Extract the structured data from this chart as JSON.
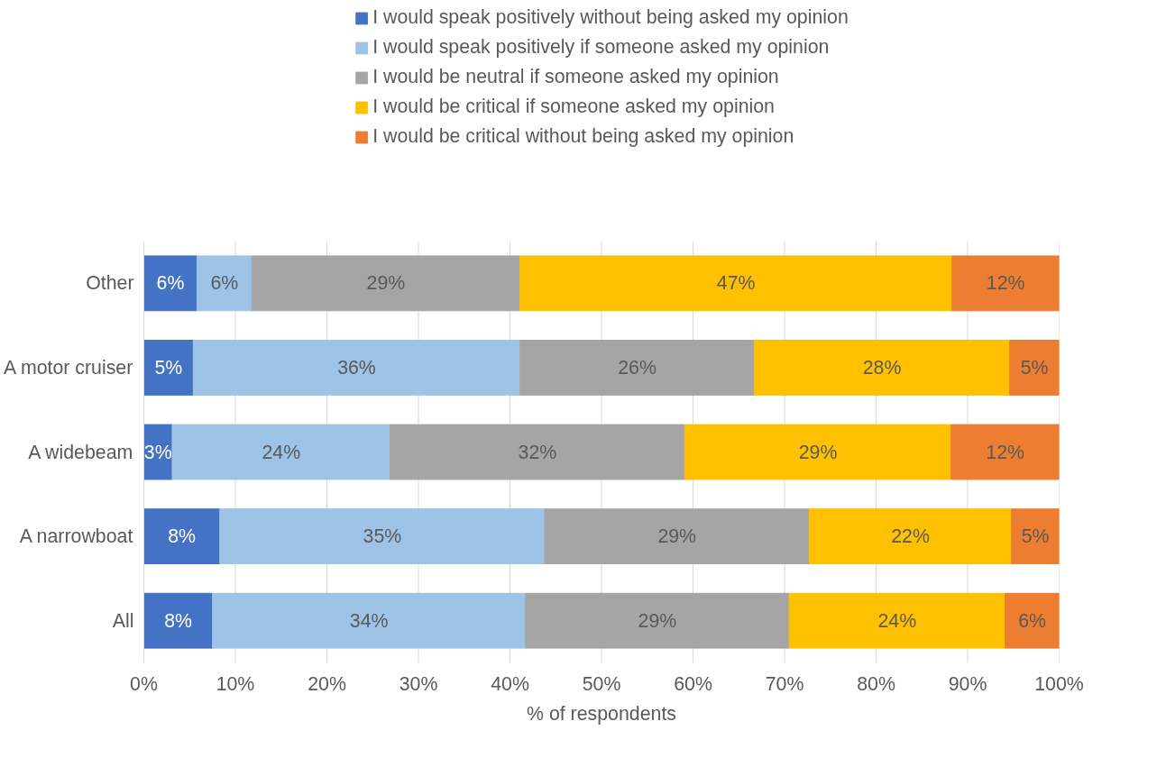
{
  "chart_data": {
    "type": "bar",
    "orientation": "horizontal",
    "stacked": true,
    "xlabel": "% of respondents",
    "categories": [
      "Other",
      "A motor cruiser",
      "A widebeam",
      "A narrowboat",
      "All"
    ],
    "xlim": [
      0,
      100
    ],
    "xticks": [
      {
        "value": 0,
        "label": "0%"
      },
      {
        "value": 10,
        "label": "10%"
      },
      {
        "value": 20,
        "label": "20%"
      },
      {
        "value": 30,
        "label": "30%"
      },
      {
        "value": 40,
        "label": "40%"
      },
      {
        "value": 50,
        "label": "50%"
      },
      {
        "value": 60,
        "label": "60%"
      },
      {
        "value": 70,
        "label": "70%"
      },
      {
        "value": 80,
        "label": "80%"
      },
      {
        "value": 90,
        "label": "90%"
      },
      {
        "value": 100,
        "label": "100%"
      }
    ],
    "grid": "x",
    "legend": "top",
    "series": [
      {
        "name": "I would speak positively without being asked my opinion",
        "color": "#4472c4",
        "values": [
          5.8,
          5.4,
          3.1,
          8.3,
          7.5
        ],
        "value_labels": [
          "6%",
          "5%",
          "3%",
          "8%",
          "8%"
        ]
      },
      {
        "name": "I would speak positively if someone asked my opinion",
        "color": "#9dc3e6",
        "values": [
          6.0,
          35.7,
          23.8,
          35.5,
          34.2
        ],
        "value_labels": [
          "6%",
          "36%",
          "24%",
          "35%",
          "34%"
        ]
      },
      {
        "name": "I would be neutral if someone asked my opinion",
        "color": "#a5a5a5",
        "values": [
          29.3,
          25.6,
          32.2,
          28.9,
          28.8
        ],
        "value_labels": [
          "29%",
          "26%",
          "32%",
          "29%",
          "29%"
        ]
      },
      {
        "name": "I would be critical if someone asked my opinion",
        "color": "#ffc000",
        "values": [
          47.2,
          27.9,
          29.1,
          22.1,
          23.6
        ],
        "value_labels": [
          "47%",
          "28%",
          "29%",
          "22%",
          "24%"
        ]
      },
      {
        "name": "I would be critical without being asked my opinion",
        "color": "#ed7d31",
        "values": [
          11.7,
          5.4,
          11.8,
          5.2,
          5.9
        ],
        "value_labels": [
          "12%",
          "5%",
          "12%",
          "5%",
          "6%"
        ]
      }
    ]
  }
}
